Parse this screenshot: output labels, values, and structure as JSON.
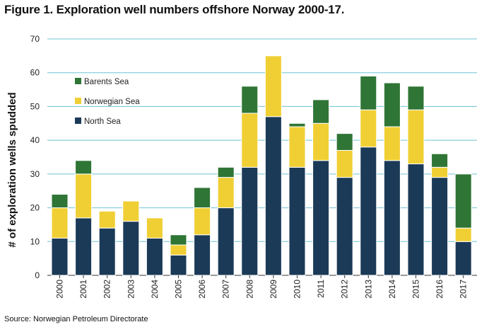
{
  "title": "Figure 1. Exploration well numbers offshore Norway 2000-17.",
  "source": "Source: Norwegian Petroleum Directorate",
  "colors": {
    "north_sea": "#1b3a57",
    "norwegian_sea": "#f0cf34",
    "barents_sea": "#2f7535",
    "grid": "#6ec3d2",
    "axis": "#333333"
  },
  "chart_data": {
    "type": "bar",
    "stacked": true,
    "ylabel": "# of exploration wells spudded",
    "xlabel": "",
    "ylim": [
      0,
      70
    ],
    "yticks": [
      0,
      10,
      20,
      30,
      40,
      50,
      60,
      70
    ],
    "grid": true,
    "legend_position": "top-left",
    "categories": [
      "2000",
      "2001",
      "2002",
      "2003",
      "2004",
      "2005",
      "2006",
      "2007",
      "2008",
      "2009",
      "2010",
      "2011",
      "2012",
      "2013",
      "2014",
      "2015",
      "2016",
      "2017"
    ],
    "series": [
      {
        "name": "North Sea",
        "color_key": "north_sea",
        "values": [
          11,
          17,
          14,
          16,
          11,
          6,
          12,
          20,
          32,
          47,
          32,
          34,
          29,
          38,
          34,
          33,
          29,
          10
        ]
      },
      {
        "name": "Norwegian Sea",
        "color_key": "norwegian_sea",
        "values": [
          9,
          13,
          5,
          6,
          6,
          3,
          8,
          9,
          16,
          18,
          12,
          11,
          8,
          11,
          10,
          16,
          3,
          4
        ]
      },
      {
        "name": "Barents Sea",
        "color_key": "barents_sea",
        "values": [
          4,
          4,
          0,
          0,
          0,
          3,
          6,
          3,
          8,
          0,
          1,
          7,
          5,
          10,
          13,
          7,
          4,
          16
        ]
      }
    ],
    "legend_order": [
      "Barents Sea",
      "Norwegian Sea",
      "North Sea"
    ]
  }
}
